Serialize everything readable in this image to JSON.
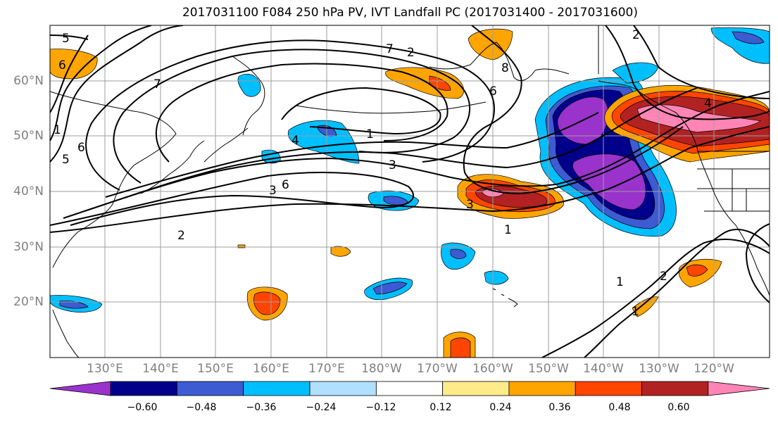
{
  "title": "2017031100 F084 250 hPa PV, IVT Landfall PC (2017031400 - 2017031600)",
  "lat_labels": [
    "60°N",
    "50°N",
    "40°N",
    "30°N",
    "20°N"
  ],
  "lon_labels": [
    "130°E",
    "140°E",
    "150°E",
    "160°E",
    "170°E",
    "180°W",
    "170°W",
    "160°W",
    "150°W",
    "140°W",
    "130°W",
    "120°W"
  ],
  "contour_labels": [
    "5",
    "6",
    "7",
    "2",
    "1",
    "3",
    "4",
    "7",
    "6",
    "8",
    "6",
    "2",
    "3",
    "1",
    "4",
    "1",
    "3",
    "2",
    "1",
    "2",
    "1",
    "5",
    "6"
  ],
  "colorbar": {
    "tick_labels": [
      "−0.60",
      "−0.48",
      "−0.36",
      "−0.24",
      "−0.12",
      "0.12",
      "0.24",
      "0.36",
      "0.48",
      "0.60"
    ],
    "colors": [
      "#9933cc",
      "#00008b",
      "#3d5bd2",
      "#00bfff",
      "#b0e0ff",
      "#ffffff",
      "#ffeb8a",
      "#ffa500",
      "#ff4500",
      "#b22222",
      "#ff85b4"
    ]
  },
  "map_extent": {
    "lon_min": 120,
    "lon_max": 250,
    "lat_min": 10,
    "lat_max": 70
  }
}
